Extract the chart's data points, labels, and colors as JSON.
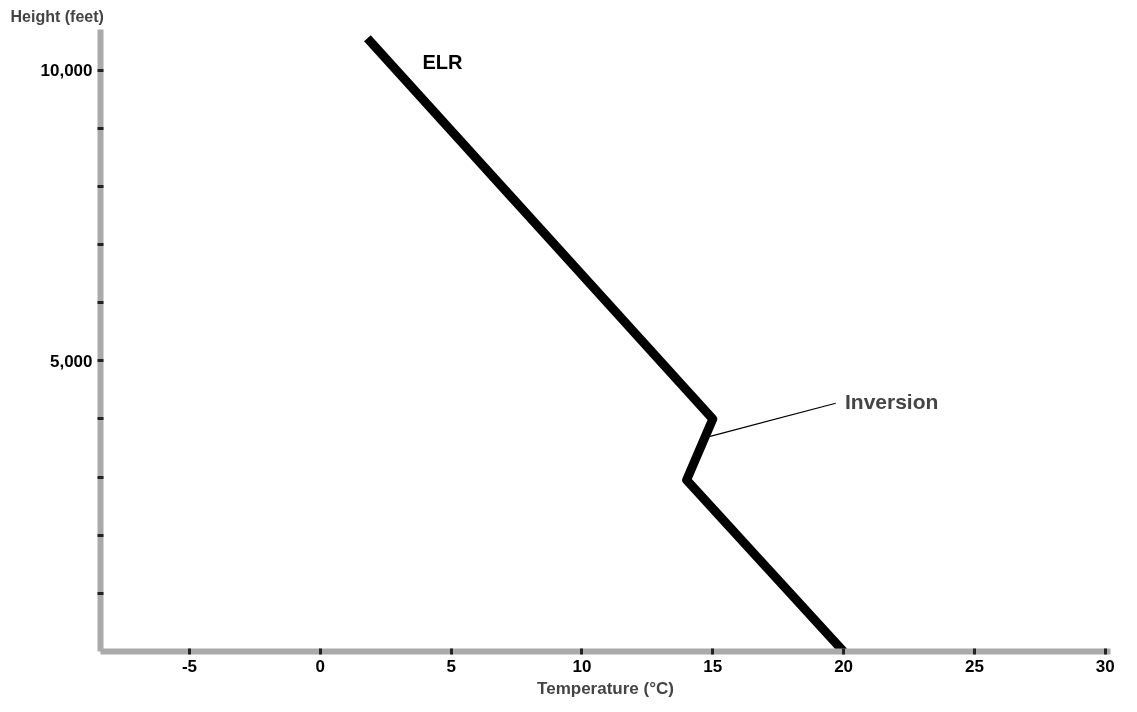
{
  "chart_data": {
    "type": "line",
    "xlabel": "Temperature (°C)",
    "ylabel": "Height (feet)",
    "series": [
      {
        "name": "ELR",
        "color": "#000000",
        "x": [
          1.8,
          15,
          14,
          20
        ],
        "values": [
          10550,
          4000,
          2950,
          0
        ]
      }
    ],
    "xlim": [
      -8.4,
      30.2
    ],
    "ylim": [
      0,
      10700
    ],
    "xticks": [
      -5,
      0,
      5,
      10,
      15,
      20,
      25,
      30
    ],
    "yticks": [
      {
        "value": 1000,
        "label": null
      },
      {
        "value": 2000,
        "label": null
      },
      {
        "value": 3000,
        "label": null
      },
      {
        "value": 4000,
        "label": null
      },
      {
        "value": 5000,
        "label": "5,000"
      },
      {
        "value": 6000,
        "label": null
      },
      {
        "value": 7000,
        "label": null
      },
      {
        "value": 8000,
        "label": null
      },
      {
        "value": 9000,
        "label": null
      },
      {
        "value": 10000,
        "label": "10,000"
      }
    ],
    "annotations": [
      {
        "text": "Inversion",
        "x": 14.9,
        "y": 3700
      }
    ],
    "grid": false,
    "marker": "none",
    "line_style": "solid"
  }
}
